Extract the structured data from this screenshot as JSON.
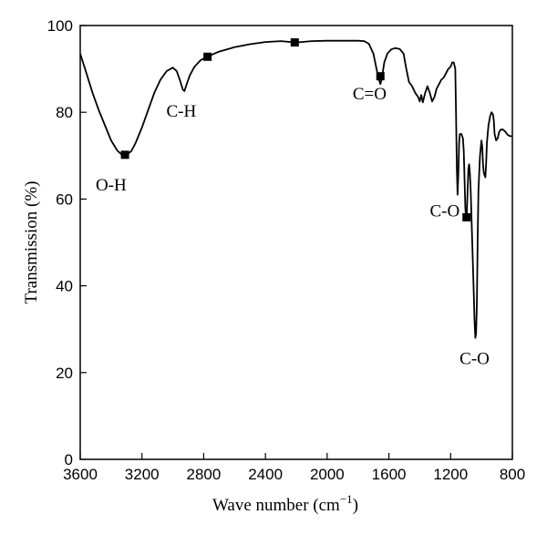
{
  "chart_data": {
    "type": "line",
    "title": "",
    "xlabel": "Wave number (cm",
    "xlabel_sup": "−1",
    "xlabel_close": ")",
    "ylabel": "Transmission (%)",
    "xlim": [
      3600,
      800
    ],
    "ylim": [
      0,
      100
    ],
    "x_reversed": true,
    "grid": false,
    "x_ticks": [
      3600,
      3200,
      2800,
      2400,
      2000,
      1600,
      1200,
      800
    ],
    "y_ticks": [
      0,
      20,
      40,
      60,
      80,
      100
    ],
    "series": [
      {
        "color": "#000000",
        "points": [
          [
            3600,
            93.5
          ],
          [
            3560,
            89
          ],
          [
            3520,
            84.5
          ],
          [
            3480,
            80.5
          ],
          [
            3440,
            77
          ],
          [
            3400,
            73.5
          ],
          [
            3360,
            71.2
          ],
          [
            3330,
            70.2
          ],
          [
            3300,
            70.2
          ],
          [
            3270,
            71
          ],
          [
            3240,
            73
          ],
          [
            3200,
            76.5
          ],
          [
            3160,
            80.5
          ],
          [
            3120,
            84.5
          ],
          [
            3080,
            87.5
          ],
          [
            3040,
            89.5
          ],
          [
            3000,
            90.3
          ],
          [
            2975,
            89.5
          ],
          [
            2955,
            87.5
          ],
          [
            2935,
            85.2
          ],
          [
            2925,
            84.9
          ],
          [
            2910,
            86.5
          ],
          [
            2890,
            88.5
          ],
          [
            2860,
            90.5
          ],
          [
            2820,
            92
          ],
          [
            2780,
            92.8
          ],
          [
            2700,
            94
          ],
          [
            2600,
            95
          ],
          [
            2500,
            95.7
          ],
          [
            2400,
            96.2
          ],
          [
            2300,
            96.4
          ],
          [
            2200,
            96.1
          ],
          [
            2100,
            96.4
          ],
          [
            2000,
            96.5
          ],
          [
            1900,
            96.5
          ],
          [
            1800,
            96.5
          ],
          [
            1760,
            96.4
          ],
          [
            1730,
            95.8
          ],
          [
            1700,
            93.5
          ],
          [
            1680,
            90
          ],
          [
            1665,
            87.5
          ],
          [
            1655,
            86.5
          ],
          [
            1645,
            88
          ],
          [
            1630,
            91.5
          ],
          [
            1610,
            93.5
          ],
          [
            1585,
            94.5
          ],
          [
            1560,
            94.8
          ],
          [
            1530,
            94.6
          ],
          [
            1505,
            93.5
          ],
          [
            1490,
            90.5
          ],
          [
            1470,
            87
          ],
          [
            1450,
            86
          ],
          [
            1430,
            84.5
          ],
          [
            1410,
            83.5
          ],
          [
            1400,
            82.5
          ],
          [
            1390,
            84
          ],
          [
            1380,
            82.3
          ],
          [
            1365,
            84.5
          ],
          [
            1350,
            86
          ],
          [
            1335,
            84.5
          ],
          [
            1320,
            82.5
          ],
          [
            1305,
            83.5
          ],
          [
            1290,
            85.5
          ],
          [
            1275,
            86.5
          ],
          [
            1260,
            87.5
          ],
          [
            1245,
            88
          ],
          [
            1230,
            89
          ],
          [
            1215,
            90
          ],
          [
            1200,
            90.5
          ],
          [
            1190,
            91.5
          ],
          [
            1180,
            91.5
          ],
          [
            1170,
            90
          ],
          [
            1165,
            80
          ],
          [
            1160,
            67
          ],
          [
            1155,
            61
          ],
          [
            1150,
            66
          ],
          [
            1145,
            73
          ],
          [
            1140,
            75
          ],
          [
            1130,
            75
          ],
          [
            1120,
            74
          ],
          [
            1115,
            71
          ],
          [
            1110,
            65
          ],
          [
            1105,
            58
          ],
          [
            1100,
            55.8
          ],
          [
            1095,
            57
          ],
          [
            1090,
            62
          ],
          [
            1085,
            67
          ],
          [
            1080,
            68
          ],
          [
            1075,
            66
          ],
          [
            1070,
            62
          ],
          [
            1060,
            50
          ],
          [
            1050,
            38
          ],
          [
            1045,
            32
          ],
          [
            1040,
            28
          ],
          [
            1035,
            29
          ],
          [
            1030,
            36
          ],
          [
            1025,
            50
          ],
          [
            1020,
            62
          ],
          [
            1010,
            70
          ],
          [
            1000,
            73.5
          ],
          [
            995,
            72
          ],
          [
            990,
            68
          ],
          [
            985,
            66
          ],
          [
            975,
            65
          ],
          [
            970,
            68
          ],
          [
            965,
            73
          ],
          [
            955,
            77
          ],
          [
            945,
            79
          ],
          [
            935,
            80
          ],
          [
            925,
            79.5
          ],
          [
            920,
            78
          ],
          [
            915,
            75
          ],
          [
            905,
            73.5
          ],
          [
            895,
            74
          ],
          [
            885,
            75.5
          ],
          [
            875,
            76
          ],
          [
            860,
            76
          ],
          [
            845,
            75.5
          ],
          [
            830,
            74.8
          ],
          [
            815,
            74.5
          ],
          [
            800,
            74.5
          ]
        ]
      }
    ],
    "markers": [
      {
        "x": 3310,
        "y": 70.2
      },
      {
        "x": 2775,
        "y": 92.8
      },
      {
        "x": 2210,
        "y": 96.1
      },
      {
        "x": 1655,
        "y": 88.3
      },
      {
        "x": 1097,
        "y": 55.8
      }
    ],
    "annotations": [
      {
        "text": "O-H",
        "x": 3400,
        "y": 62
      },
      {
        "text": "C-H",
        "x": 2945,
        "y": 79
      },
      {
        "text": "C=O",
        "x": 1725,
        "y": 83
      },
      {
        "text": "C-O",
        "x": 1238,
        "y": 56
      },
      {
        "text": "C-O",
        "x": 1045,
        "y": 22
      }
    ]
  }
}
